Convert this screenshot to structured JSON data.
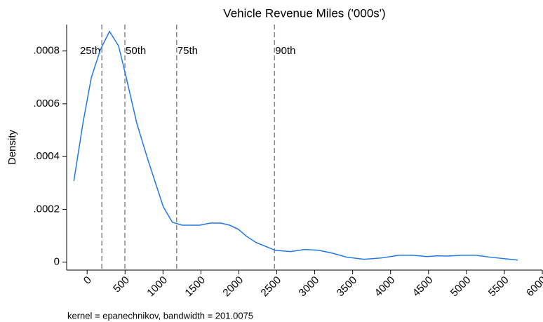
{
  "chart_data": {
    "type": "line",
    "title": "Vehicle Revenue Miles ('000s')",
    "y_label": "Density",
    "note": "kernel = epanechnikov, bandwidth = 201.0075",
    "x": [
      -175,
      -55,
      55,
      175,
      295,
      415,
      516,
      654,
      793,
      1005,
      1124,
      1253,
      1484,
      1622,
      1760,
      1880,
      1991,
      2101,
      2230,
      2479,
      2682,
      2866,
      3051,
      3235,
      3419,
      3650,
      3880,
      4111,
      4295,
      4479,
      4618,
      4756,
      4940,
      5124,
      5309,
      5677
    ],
    "series": [
      {
        "color": "#1f77e8",
        "values": [
          0.000307,
          0.000527,
          0.000699,
          0.000805,
          0.000874,
          0.000819,
          0.000699,
          0.000527,
          0.000395,
          0.000209,
          0.000151,
          0.00014,
          0.00014,
          0.000148,
          0.000148,
          0.00014,
          0.000125,
          9.8e-05,
          7.4e-05,
          4.5e-05,
          4e-05,
          4.8e-05,
          4.5e-05,
          3.4e-05,
          1.9e-05,
          1.1e-05,
          1.6e-05,
          2.6e-05,
          2.6e-05,
          2.1e-05,
          2.4e-05,
          2.3e-05,
          2.6e-05,
          2.6e-05,
          1.9e-05,
          8e-06
        ]
      }
    ],
    "vlines": [
      {
        "value": 194,
        "label": "25th"
      },
      {
        "value": 498,
        "label": "50th"
      },
      {
        "value": 1180,
        "label": "75th"
      },
      {
        "value": 2470,
        "label": "90th"
      }
    ],
    "vline_color": "#888888",
    "xlim": [
      -270,
      6000
    ],
    "ylim": [
      -3e-05,
      0.0009
    ],
    "xticks": [
      0,
      500,
      1000,
      1500,
      2000,
      2500,
      3000,
      3500,
      4000,
      4500,
      5000,
      5500,
      6000
    ],
    "yticks": [
      0,
      {
        "value": 0.0002,
        "label": ".0002"
      },
      {
        "value": 0.0004,
        "label": ".0004"
      },
      {
        "value": 0.0006,
        "label": ".0006"
      },
      {
        "value": 0.0008,
        "label": ".0008"
      }
    ]
  }
}
